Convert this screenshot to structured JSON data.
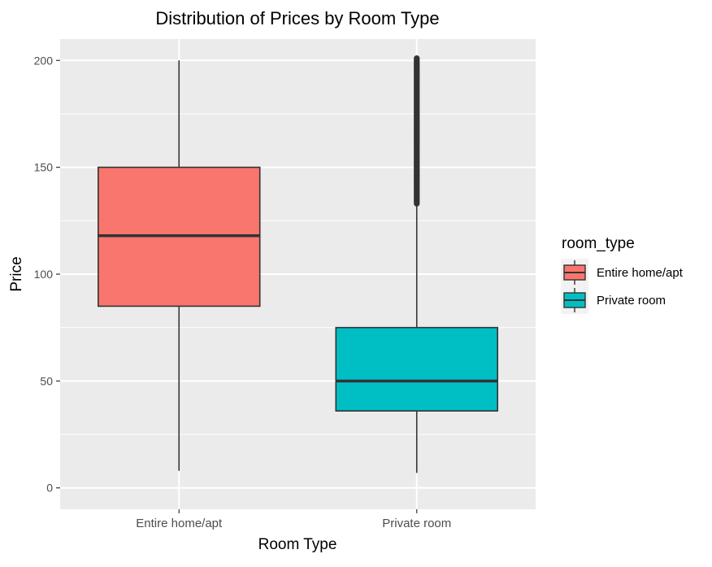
{
  "chart_data": {
    "type": "boxplot",
    "title": "Distribution of Prices by Room Type",
    "xlabel": "Room Type",
    "ylabel": "Price",
    "ylim": [
      -10,
      210
    ],
    "yticks": [
      0,
      50,
      100,
      150,
      200
    ],
    "grid": true,
    "legend": {
      "title": "room_type",
      "position": "right"
    },
    "categories": [
      "Entire home/apt",
      "Private room"
    ],
    "series": [
      {
        "name": "Entire home/apt",
        "color": "#F8766D",
        "whisker_low": 8,
        "q1": 85,
        "median": 118,
        "q3": 150,
        "whisker_high": 200,
        "outliers_range": null
      },
      {
        "name": "Private room",
        "color": "#00BFC4",
        "whisker_low": 7,
        "q1": 36,
        "median": 50,
        "q3": 75,
        "whisker_high": 133,
        "outliers_range": [
          133,
          201
        ]
      }
    ]
  }
}
